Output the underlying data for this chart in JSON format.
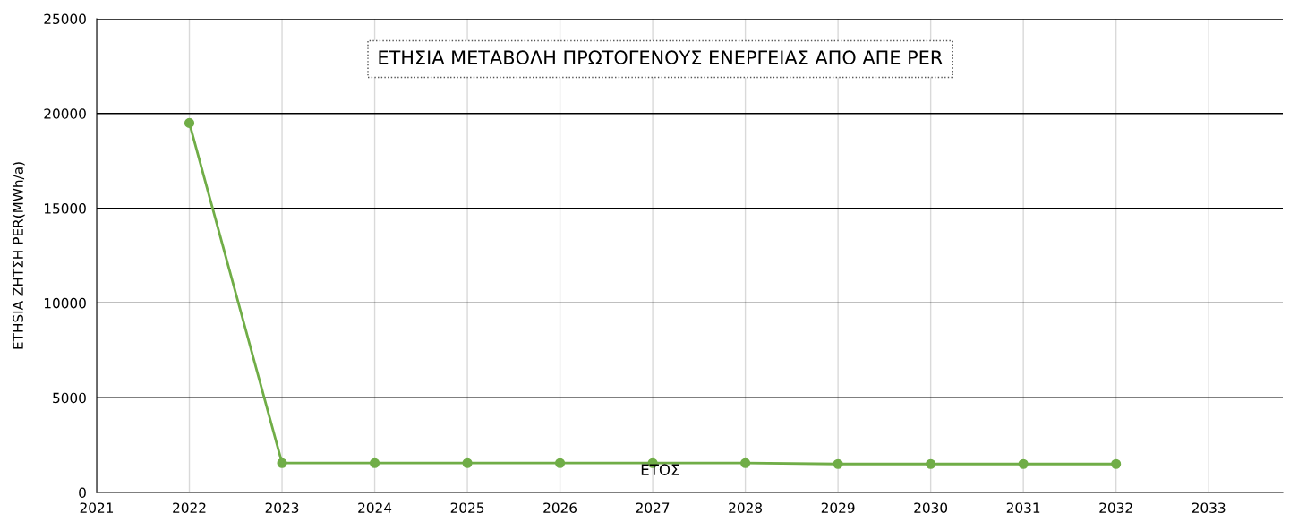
{
  "chart_data": {
    "type": "line",
    "title": "ΕΤΗΣΙΑ ΜΕΤΑΒΟΛΗ ΠΡΩΤΟΓΕΝΟΥΣ ΕΝΕΡΓΕΙΑΣ ΑΠΟ ΑΠΕ PER",
    "xlabel": "ΕΤΟΣ",
    "ylabel": "ETHSIA ΖΗΤΣΗ PER(MWh/a)",
    "x": [
      2022,
      2023,
      2024,
      2025,
      2026,
      2027,
      2028,
      2029,
      2030,
      2031,
      2032
    ],
    "series": [
      {
        "color": "#70ad47",
        "values": [
          19500,
          1550,
          1550,
          1550,
          1550,
          1550,
          1550,
          1500,
          1500,
          1500,
          1500
        ]
      }
    ],
    "xlim": [
      2021,
      2033.8
    ],
    "xticks": [
      2021,
      2022,
      2023,
      2024,
      2025,
      2026,
      2027,
      2028,
      2029,
      2030,
      2031,
      2032,
      2033
    ],
    "ylim": [
      0,
      25000
    ],
    "yticks": [
      0,
      5000,
      10000,
      15000,
      20000,
      25000
    ],
    "grid": true,
    "marker": "circle",
    "line_style": "solid"
  }
}
